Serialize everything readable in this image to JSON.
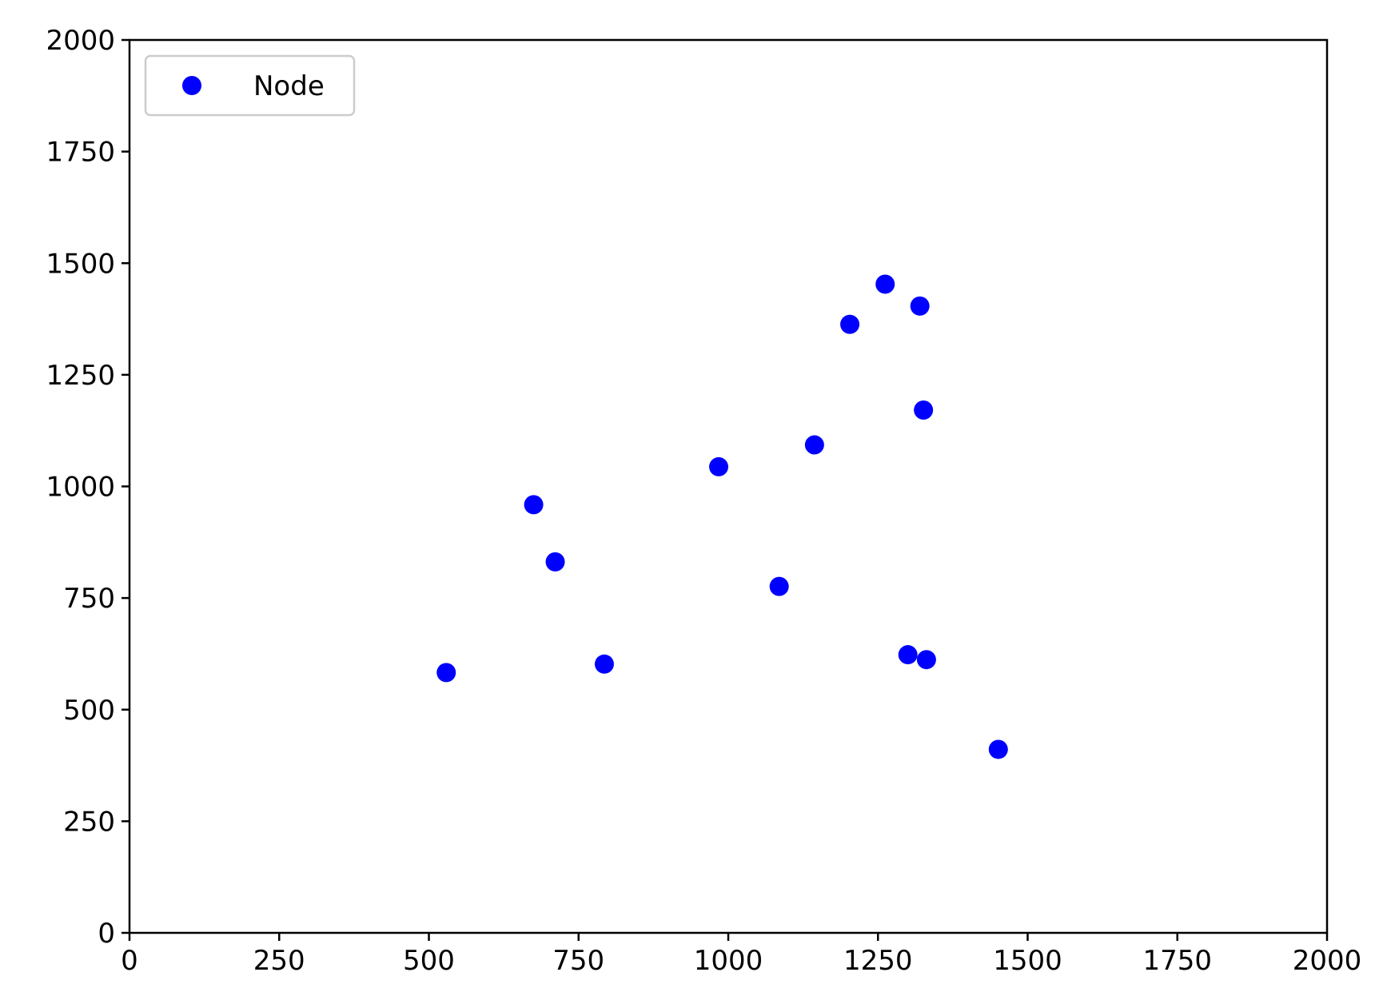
{
  "chart_data": {
    "type": "scatter",
    "title": "",
    "xlabel": "",
    "ylabel": "",
    "xlim": [
      0,
      2000
    ],
    "ylim": [
      0,
      2000
    ],
    "x_ticks": [
      0,
      250,
      500,
      750,
      1000,
      1250,
      1500,
      1750,
      2000
    ],
    "y_ticks": [
      0,
      250,
      500,
      750,
      1000,
      1250,
      1500,
      1750,
      2000
    ],
    "x_tick_labels": [
      "0",
      "250",
      "500",
      "750",
      "1000",
      "1250",
      "1500",
      "1750",
      "2000"
    ],
    "y_tick_labels": [
      "0",
      "250",
      "500",
      "750",
      "1000",
      "1250",
      "1500",
      "1750",
      "2000"
    ],
    "grid": false,
    "legend": {
      "placement": "top-left",
      "entries": [
        "Node"
      ]
    },
    "series": [
      {
        "name": "Node",
        "color": "#0000ff",
        "marker": "circle",
        "points": [
          {
            "x": 529,
            "y": 583
          },
          {
            "x": 675,
            "y": 959
          },
          {
            "x": 711,
            "y": 831
          },
          {
            "x": 793,
            "y": 602
          },
          {
            "x": 984,
            "y": 1044
          },
          {
            "x": 1085,
            "y": 776
          },
          {
            "x": 1144,
            "y": 1093
          },
          {
            "x": 1203,
            "y": 1363
          },
          {
            "x": 1262,
            "y": 1453
          },
          {
            "x": 1300,
            "y": 623
          },
          {
            "x": 1320,
            "y": 1404
          },
          {
            "x": 1326,
            "y": 1171
          },
          {
            "x": 1331,
            "y": 612
          },
          {
            "x": 1451,
            "y": 411
          }
        ]
      }
    ]
  }
}
